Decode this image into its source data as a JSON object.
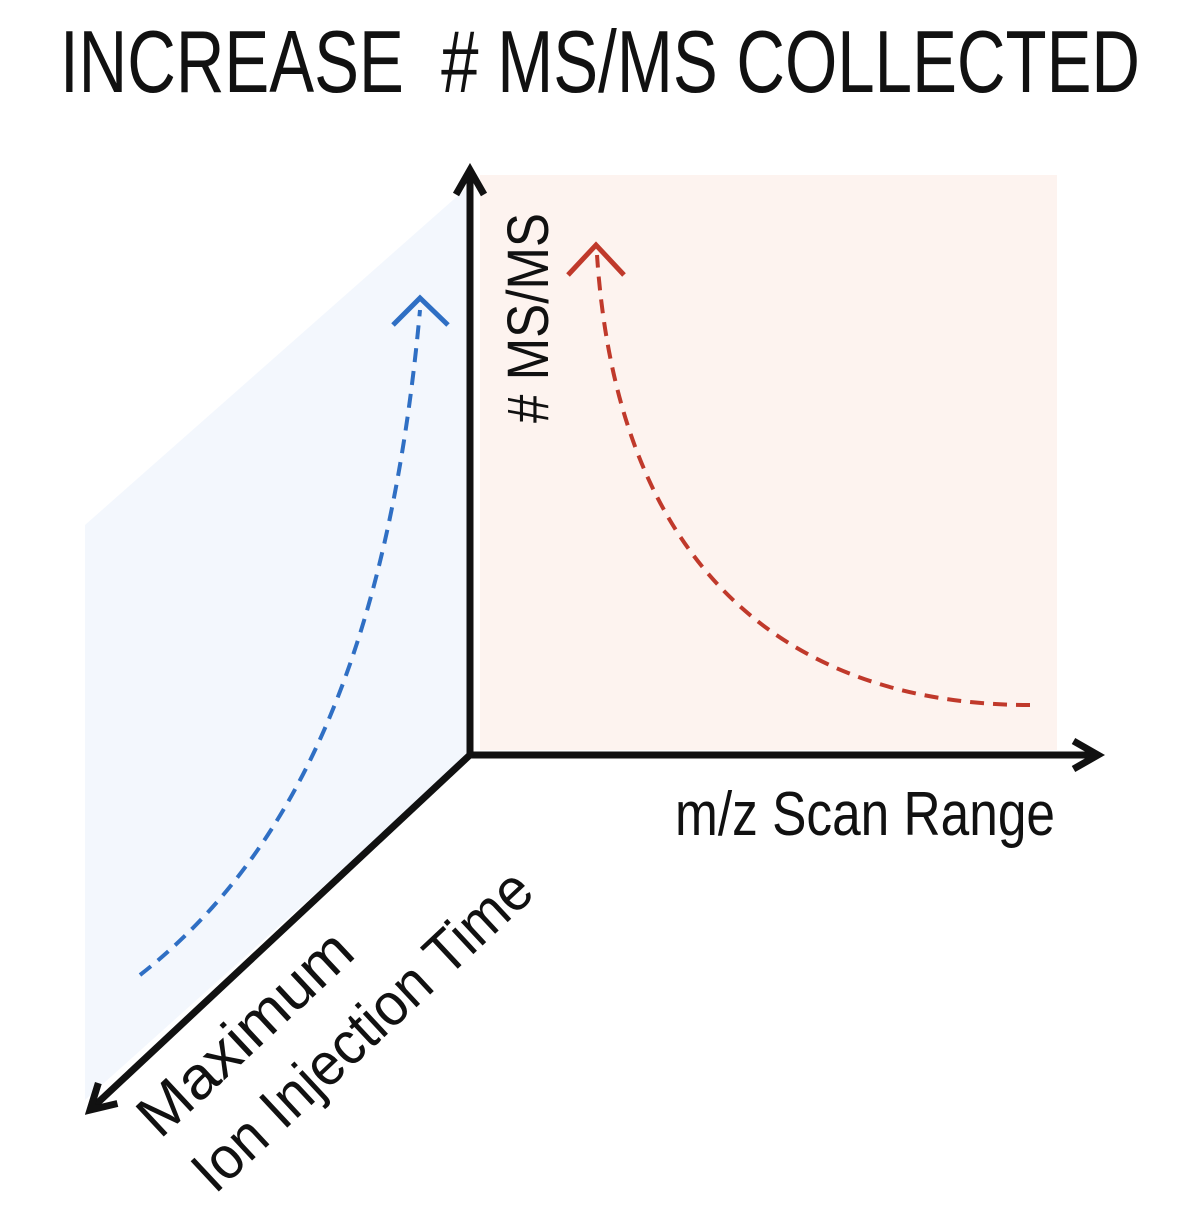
{
  "title": "INCREASE  # MS/MS COLLECTED",
  "axes": {
    "y_label": "# MS/MS",
    "x_label": "m/z Scan Range",
    "z_label": [
      "Maximum",
      "Ion Injection Time"
    ]
  }
}
